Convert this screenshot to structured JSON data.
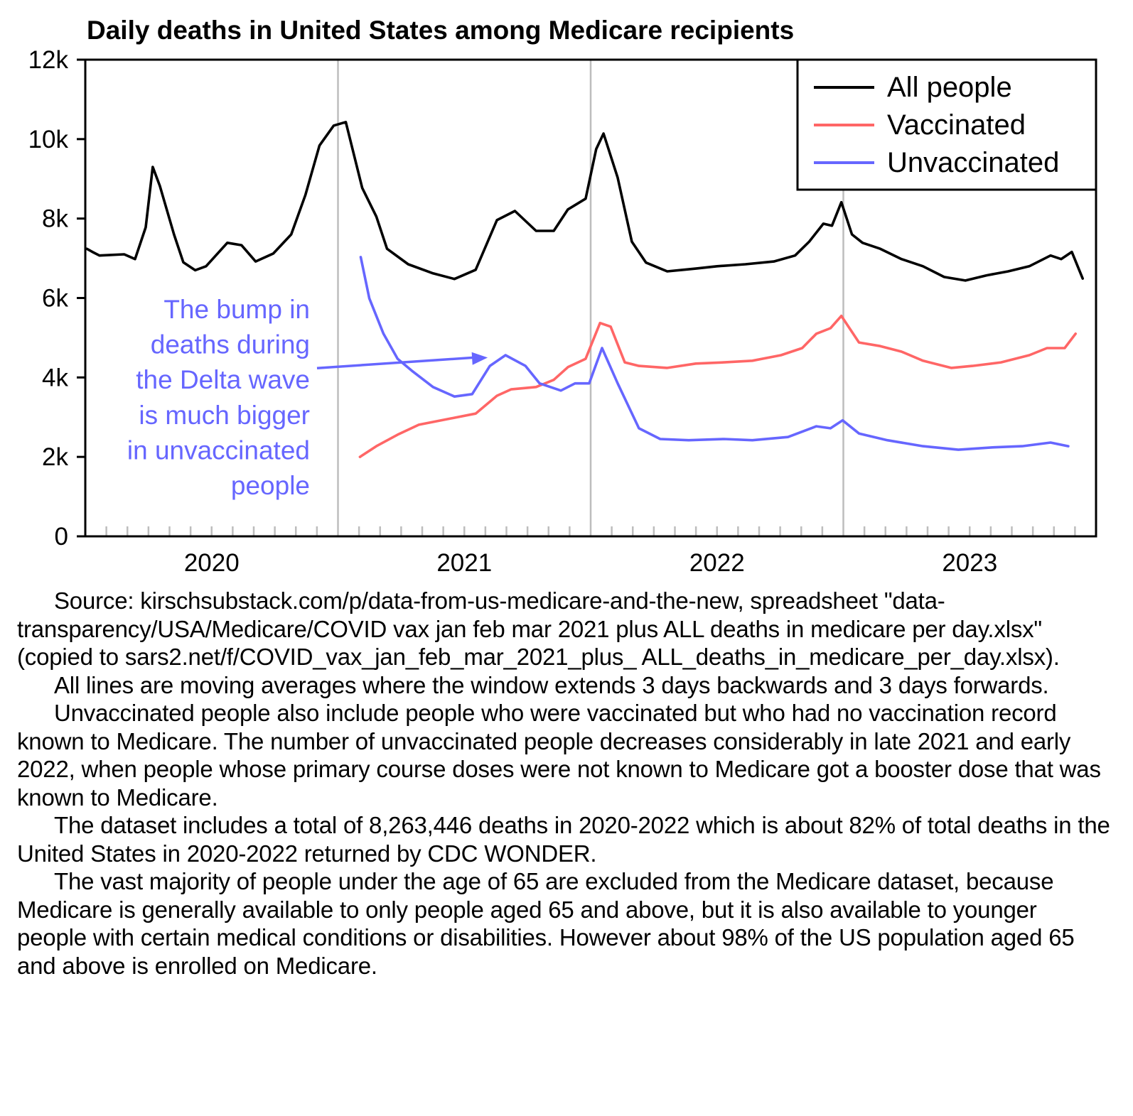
{
  "chart_data": {
    "type": "line",
    "title": "Daily deaths in United States among Medicare recipients",
    "xlabel": "",
    "ylabel": "",
    "x_unit": "decimal year",
    "xlim": [
      2020.0,
      2024.0
    ],
    "ylim": [
      0,
      12000
    ],
    "yticks": [
      0,
      2000,
      4000,
      6000,
      8000,
      10000,
      12000
    ],
    "ytick_labels": [
      "0",
      "2k",
      "4k",
      "6k",
      "8k",
      "10k",
      "12k"
    ],
    "x_year_labels": [
      {
        "label": "2020",
        "center": 2020.5
      },
      {
        "label": "2021",
        "center": 2021.5
      },
      {
        "label": "2022",
        "center": 2022.5
      },
      {
        "label": "2023",
        "center": 2023.5
      }
    ],
    "year_gridlines": [
      2021.0,
      2022.0,
      2023.0
    ],
    "minor_ticks": "monthly",
    "grid": false,
    "legend": {
      "position": "top-right"
    },
    "series": [
      {
        "name": "All people",
        "color": "#000000",
        "points": [
          [
            2020.006,
            7240
          ],
          [
            2020.028,
            7160
          ],
          [
            2020.056,
            7070
          ],
          [
            2020.154,
            7100
          ],
          [
            2020.197,
            6980
          ],
          [
            2020.239,
            7780
          ],
          [
            2020.267,
            9300
          ],
          [
            2020.295,
            8820
          ],
          [
            2020.351,
            7600
          ],
          [
            2020.388,
            6900
          ],
          [
            2020.435,
            6700
          ],
          [
            2020.478,
            6800
          ],
          [
            2020.562,
            7390
          ],
          [
            2020.618,
            7330
          ],
          [
            2020.674,
            6920
          ],
          [
            2020.744,
            7120
          ],
          [
            2020.815,
            7600
          ],
          [
            2020.871,
            8590
          ],
          [
            2020.927,
            9840
          ],
          [
            2020.983,
            10340
          ],
          [
            2021.031,
            10430
          ],
          [
            2021.096,
            8770
          ],
          [
            2021.152,
            8050
          ],
          [
            2021.194,
            7240
          ],
          [
            2021.278,
            6850
          ],
          [
            2021.376,
            6620
          ],
          [
            2021.461,
            6480
          ],
          [
            2021.545,
            6710
          ],
          [
            2021.629,
            7960
          ],
          [
            2021.7,
            8190
          ],
          [
            2021.784,
            7690
          ],
          [
            2021.854,
            7690
          ],
          [
            2021.91,
            8230
          ],
          [
            2021.98,
            8500
          ],
          [
            2022.022,
            9750
          ],
          [
            2022.051,
            10140
          ],
          [
            2022.107,
            9030
          ],
          [
            2022.163,
            7420
          ],
          [
            2022.219,
            6890
          ],
          [
            2022.303,
            6670
          ],
          [
            2022.416,
            6740
          ],
          [
            2022.5,
            6800
          ],
          [
            2022.612,
            6850
          ],
          [
            2022.725,
            6920
          ],
          [
            2022.809,
            7070
          ],
          [
            2022.865,
            7420
          ],
          [
            2022.921,
            7870
          ],
          [
            2022.955,
            7820
          ],
          [
            2022.992,
            8410
          ],
          [
            2023.034,
            7600
          ],
          [
            2023.076,
            7390
          ],
          [
            2023.146,
            7240
          ],
          [
            2023.23,
            6980
          ],
          [
            2023.315,
            6800
          ],
          [
            2023.399,
            6530
          ],
          [
            2023.483,
            6440
          ],
          [
            2023.567,
            6570
          ],
          [
            2023.652,
            6670
          ],
          [
            2023.736,
            6800
          ],
          [
            2023.82,
            7070
          ],
          [
            2023.862,
            6980
          ],
          [
            2023.904,
            7160
          ],
          [
            2023.947,
            6490
          ]
        ]
      },
      {
        "name": "Vaccinated",
        "color": "#ff6666",
        "points": [
          [
            2021.087,
            2000
          ],
          [
            2021.152,
            2270
          ],
          [
            2021.236,
            2560
          ],
          [
            2021.32,
            2810
          ],
          [
            2021.433,
            2950
          ],
          [
            2021.545,
            3090
          ],
          [
            2021.629,
            3540
          ],
          [
            2021.685,
            3700
          ],
          [
            2021.784,
            3760
          ],
          [
            2021.854,
            3940
          ],
          [
            2021.91,
            4260
          ],
          [
            2021.98,
            4470
          ],
          [
            2022.037,
            5370
          ],
          [
            2022.079,
            5280
          ],
          [
            2022.135,
            4380
          ],
          [
            2022.191,
            4290
          ],
          [
            2022.303,
            4240
          ],
          [
            2022.416,
            4350
          ],
          [
            2022.528,
            4380
          ],
          [
            2022.64,
            4420
          ],
          [
            2022.753,
            4560
          ],
          [
            2022.837,
            4740
          ],
          [
            2022.893,
            5100
          ],
          [
            2022.949,
            5240
          ],
          [
            2022.992,
            5550
          ],
          [
            2023.062,
            4880
          ],
          [
            2023.146,
            4790
          ],
          [
            2023.23,
            4650
          ],
          [
            2023.315,
            4420
          ],
          [
            2023.427,
            4240
          ],
          [
            2023.511,
            4290
          ],
          [
            2023.624,
            4380
          ],
          [
            2023.736,
            4560
          ],
          [
            2023.806,
            4740
          ],
          [
            2023.876,
            4740
          ],
          [
            2023.919,
            5100
          ]
        ]
      },
      {
        "name": "Unvaccinated",
        "color": "#6666ff",
        "points": [
          [
            2021.09,
            7030
          ],
          [
            2021.124,
            5990
          ],
          [
            2021.18,
            5100
          ],
          [
            2021.236,
            4470
          ],
          [
            2021.292,
            4170
          ],
          [
            2021.376,
            3760
          ],
          [
            2021.461,
            3520
          ],
          [
            2021.531,
            3580
          ],
          [
            2021.601,
            4290
          ],
          [
            2021.663,
            4560
          ],
          [
            2021.742,
            4290
          ],
          [
            2021.798,
            3850
          ],
          [
            2021.882,
            3670
          ],
          [
            2021.938,
            3850
          ],
          [
            2021.994,
            3850
          ],
          [
            2022.045,
            4740
          ],
          [
            2022.107,
            3850
          ],
          [
            2022.191,
            2720
          ],
          [
            2022.275,
            2450
          ],
          [
            2022.388,
            2420
          ],
          [
            2022.528,
            2450
          ],
          [
            2022.64,
            2420
          ],
          [
            2022.781,
            2500
          ],
          [
            2022.893,
            2770
          ],
          [
            2022.949,
            2720
          ],
          [
            2022.997,
            2920
          ],
          [
            2023.062,
            2590
          ],
          [
            2023.174,
            2420
          ],
          [
            2023.315,
            2270
          ],
          [
            2023.455,
            2180
          ],
          [
            2023.596,
            2240
          ],
          [
            2023.708,
            2270
          ],
          [
            2023.82,
            2360
          ],
          [
            2023.89,
            2270
          ]
        ]
      }
    ],
    "annotation": {
      "text_lines": [
        "The bump in",
        "deaths during",
        "the Delta wave",
        "is much bigger",
        "in unvaccinated",
        "people"
      ],
      "color": "#6666ff",
      "arrow_from": [
        2021.0,
        4700
      ],
      "arrow_to": [
        2021.615,
        4500
      ]
    }
  },
  "caption": {
    "paragraphs": [
      "Source: kirschsubstack.com/p/data-from-us-medicare-and-the-new, spreadsheet \"data-transparency/USA/Medicare/COVID vax jan feb mar 2021 plus ALL deaths in medicare per day.xlsx\" (copied to sars2.net/f/COVID_vax_jan_feb_mar_2021_plus_ ALL_deaths_in_medicare_per_day.xlsx).",
      "All lines are moving averages where the window extends 3 days backwards and 3 days forwards.",
      "Unvaccinated people also include people who were vaccinated but who had no vaccination record known to Medicare. The number of unvaccinated people decreases considerably in late 2021 and early 2022, when people whose primary course doses were not known to Medicare got a booster dose that was known to Medicare.",
      "The dataset includes a total of 8,263,446 deaths in 2020-2022 which is about 82% of total deaths in the United States in 2020-2022 returned by CDC WONDER.",
      "The vast majority of people under the age of 65 are excluded from the Medicare dataset, because Medicare is generally available to only people aged 65 and above, but it is also available to younger people with certain medical conditions or disabilities. However about 98% of the US population aged 65 and above is enrolled on Medicare."
    ]
  }
}
